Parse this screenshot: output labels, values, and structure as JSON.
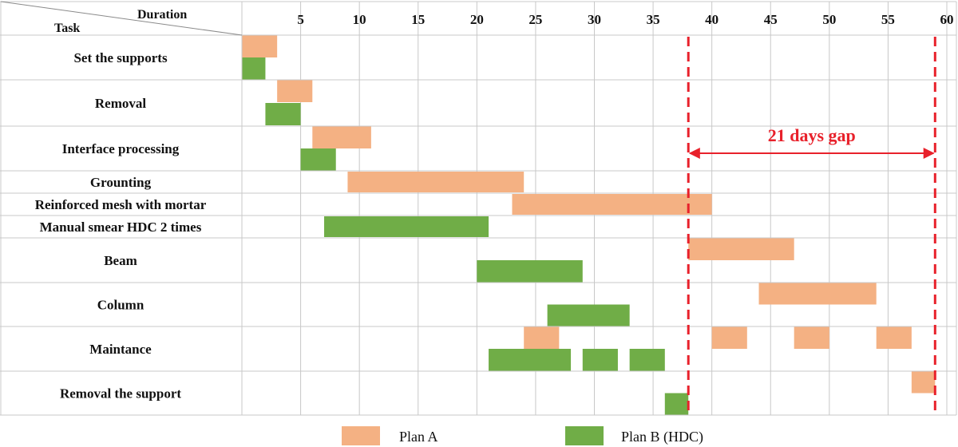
{
  "chart_data": {
    "type": "gantt",
    "header": {
      "duration_label": "Duration",
      "task_label": "Task"
    },
    "x_ticks": [
      5,
      10,
      15,
      20,
      25,
      30,
      35,
      40,
      45,
      50,
      55,
      60
    ],
    "xlim": [
      0,
      60
    ],
    "grid": true,
    "legend_position": "bottom",
    "colors": {
      "plan_a": "#F4B183",
      "plan_b": "#70AD47",
      "gap": "#E8212B",
      "grid": "#C8C8C8"
    },
    "tasks": [
      {
        "name": "Set the supports",
        "bars": [
          {
            "series": "plan_a",
            "start": 0,
            "end": 3
          },
          {
            "series": "plan_b",
            "start": 0,
            "end": 2
          }
        ]
      },
      {
        "name": "Removal",
        "bars": [
          {
            "series": "plan_a",
            "start": 3,
            "end": 6
          },
          {
            "series": "plan_b",
            "start": 2,
            "end": 5
          }
        ]
      },
      {
        "name": "Interface processing",
        "bars": [
          {
            "series": "plan_a",
            "start": 6,
            "end": 11
          },
          {
            "series": "plan_b",
            "start": 5,
            "end": 8
          }
        ]
      },
      {
        "name": "Grounting",
        "bars": [
          {
            "series": "plan_a",
            "start": 9,
            "end": 24
          }
        ]
      },
      {
        "name": "Reinforced mesh with  mortar",
        "bars": [
          {
            "series": "plan_a",
            "start": 23,
            "end": 40
          }
        ]
      },
      {
        "name": "Manual smear HDC 2 times",
        "bars": [
          {
            "series": "plan_b",
            "start": 7,
            "end": 21
          }
        ]
      },
      {
        "name": "Beam",
        "bars": [
          {
            "series": "plan_a",
            "start": 38,
            "end": 47
          },
          {
            "series": "plan_b",
            "start": 20,
            "end": 29
          }
        ]
      },
      {
        "name": "Column",
        "bars": [
          {
            "series": "plan_a",
            "start": 44,
            "end": 54
          },
          {
            "series": "plan_b",
            "start": 26,
            "end": 33
          }
        ]
      },
      {
        "name": "Maintance",
        "bars": [
          {
            "series": "plan_a",
            "start": 24,
            "end": 27
          },
          {
            "series": "plan_a",
            "start": 40,
            "end": 43
          },
          {
            "series": "plan_a",
            "start": 47,
            "end": 50
          },
          {
            "series": "plan_a",
            "start": 54,
            "end": 57
          },
          {
            "series": "plan_b",
            "start": 21,
            "end": 28
          },
          {
            "series": "plan_b",
            "start": 29,
            "end": 32
          },
          {
            "series": "plan_b",
            "start": 33,
            "end": 36
          }
        ]
      },
      {
        "name": "Removal the support",
        "bars": [
          {
            "series": "plan_a",
            "start": 57,
            "end": 59
          },
          {
            "series": "plan_b",
            "start": 36,
            "end": 38
          }
        ]
      }
    ],
    "gap_annotation": {
      "label": "21 days gap",
      "from": 38,
      "to": 59
    },
    "legend": [
      {
        "series": "plan_a",
        "label": "Plan A"
      },
      {
        "series": "plan_b",
        "label": "Plan B (HDC)"
      }
    ]
  }
}
